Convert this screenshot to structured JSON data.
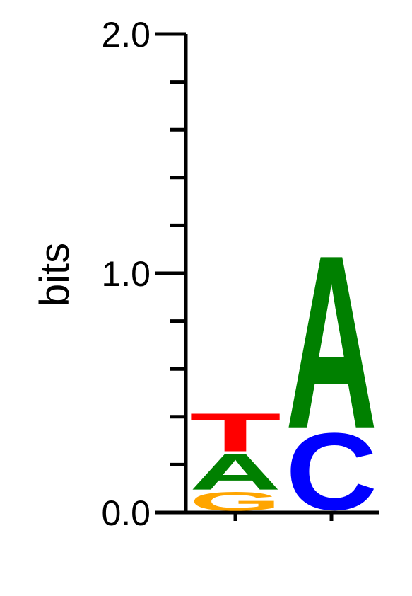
{
  "chart_data": {
    "type": "sequence-logo",
    "ylabel": "bits",
    "ylim": [
      0,
      2.0
    ],
    "y_tick_labels": [
      "0.0",
      "1.0",
      "2.0"
    ],
    "y_tick_values": [
      0,
      1.0,
      2.0
    ],
    "minor_tick_step": 0.2,
    "positions": [
      {
        "stack": [
          {
            "letter": "G",
            "height": 0.09,
            "color": "#FFA500"
          },
          {
            "letter": "A",
            "height": 0.16,
            "color": "#008000"
          },
          {
            "letter": "T",
            "height": 0.17,
            "color": "#FF0000"
          }
        ]
      },
      {
        "stack": [
          {
            "letter": "C",
            "height": 0.35,
            "color": "#0000FF"
          },
          {
            "letter": "A",
            "height": 0.75,
            "color": "#008000"
          }
        ]
      }
    ]
  }
}
